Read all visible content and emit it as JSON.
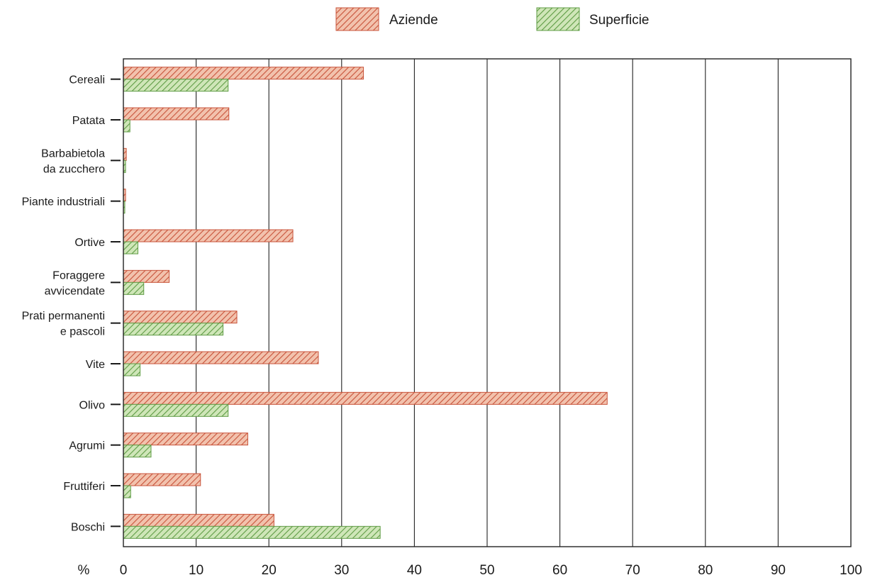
{
  "chart_data": {
    "type": "bar",
    "orientation": "horizontal",
    "title": "",
    "xlabel": "",
    "ylabel": "",
    "x_unit_label": "%",
    "xlim": [
      0,
      100
    ],
    "x_ticks": [
      0,
      10,
      20,
      30,
      40,
      50,
      60,
      70,
      80,
      90,
      100
    ],
    "grid": "vertical lines at every 10",
    "legend_position": "top",
    "categories": [
      [
        "Cereali"
      ],
      [
        "Patata"
      ],
      [
        "Barbabietola",
        "da zucchero"
      ],
      [
        "Piante industriali"
      ],
      [
        "Ortive"
      ],
      [
        "Foraggere",
        "avvicendate"
      ],
      [
        "Prati permanenti",
        "e pascoli"
      ],
      [
        "Vite"
      ],
      [
        "Olivo"
      ],
      [
        "Agrumi"
      ],
      [
        "Fruttiferi"
      ],
      [
        "Boschi"
      ]
    ],
    "series": [
      {
        "name": "Aziende",
        "color": "#e0856a",
        "values": [
          33,
          14.5,
          0.4,
          0.3,
          23.3,
          6.3,
          15.6,
          26.8,
          66.5,
          17.1,
          10.6,
          20.7
        ]
      },
      {
        "name": "Superficie",
        "color": "#8fc472",
        "values": [
          14.4,
          0.9,
          0.3,
          0.1,
          2,
          2.8,
          13.7,
          2.3,
          14.4,
          3.8,
          1,
          35.3
        ]
      }
    ]
  }
}
